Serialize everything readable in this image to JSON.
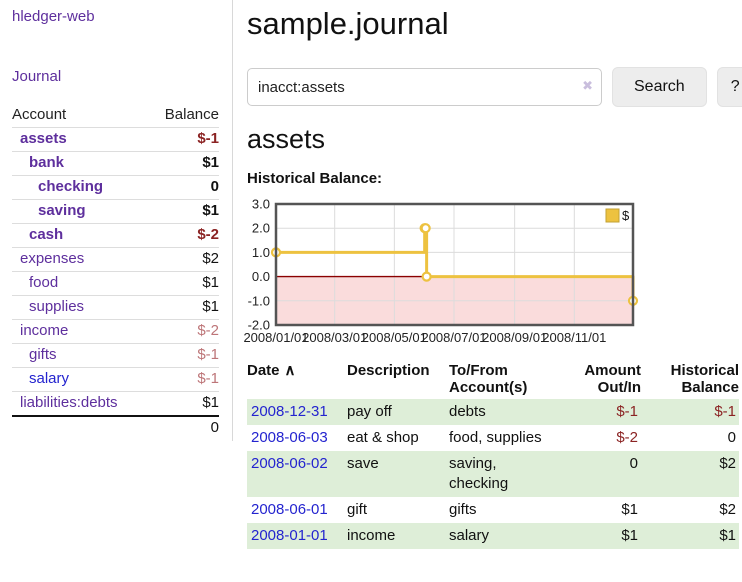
{
  "sidebar": {
    "brand": "hledger-web",
    "nav_journal": "Journal",
    "headers": {
      "account": "Account",
      "balance": "Balance"
    },
    "accounts": [
      {
        "name": "assets",
        "balance": "$-1",
        "depth": 0,
        "bold": true,
        "balance_sign": "negative-strong"
      },
      {
        "name": "bank",
        "balance": "$1",
        "depth": 1,
        "bold": true,
        "balance_sign": "positive"
      },
      {
        "name": "checking",
        "balance": "0",
        "depth": 2,
        "bold": true,
        "balance_sign": "zero"
      },
      {
        "name": "saving",
        "balance": "$1",
        "depth": 2,
        "bold": true,
        "balance_sign": "positive"
      },
      {
        "name": "cash",
        "balance": "$-2",
        "depth": 1,
        "bold": true,
        "balance_sign": "negative-strong"
      },
      {
        "name": "expenses",
        "balance": "$2",
        "depth": 0,
        "bold": false,
        "balance_sign": "positive"
      },
      {
        "name": "food",
        "balance": "$1",
        "depth": 1,
        "bold": false,
        "balance_sign": "positive"
      },
      {
        "name": "supplies",
        "balance": "$1",
        "depth": 1,
        "bold": false,
        "balance_sign": "positive"
      },
      {
        "name": "income",
        "balance": "$-2",
        "depth": 0,
        "bold": false,
        "balance_sign": "negative-muted"
      },
      {
        "name": "gifts",
        "balance": "$-1",
        "depth": 1,
        "bold": false,
        "balance_sign": "negative-muted"
      },
      {
        "name": "salary",
        "balance": "$-1",
        "depth": 1,
        "bold": false,
        "balance_sign": "negative-muted"
      },
      {
        "name": "liabilities:debts",
        "balance": "$1",
        "depth": 0,
        "bold": false,
        "balance_sign": "positive"
      }
    ],
    "total": "0"
  },
  "main": {
    "title": "sample.journal",
    "search": {
      "value": "inacct:assets",
      "clear_icon": "✖",
      "button_label": "Search",
      "help_label": "?"
    },
    "account_heading": "assets",
    "chart_label": "Historical Balance:"
  },
  "chart_data": {
    "type": "line",
    "title": "Historical Balance:",
    "series": [
      {
        "name": "$",
        "color": "#edc240",
        "marker_fill": "#ffffff",
        "steps": true,
        "points": [
          [
            "2008-01-01",
            1
          ],
          [
            "2008-06-01",
            2
          ],
          [
            "2008-06-02",
            2
          ],
          [
            "2008-06-03",
            0
          ],
          [
            "2008-12-31",
            -1
          ]
        ]
      }
    ],
    "x_range": [
      "2008-01-01",
      "2008-12-31"
    ],
    "x_ticks": [
      {
        "label": "2008/01/01",
        "date": "2008-01-01"
      },
      {
        "label": "2008/03/01",
        "date": "2008-03-01"
      },
      {
        "label": "2008/05/01",
        "date": "2008-05-01"
      },
      {
        "label": "2008/07/01",
        "date": "2008-07-01"
      },
      {
        "label": "2008/09/01",
        "date": "2008-09-01"
      },
      {
        "label": "2008/11/01",
        "date": "2008-11-01"
      }
    ],
    "y_ticks": [
      3,
      2,
      1,
      0,
      -1,
      -2
    ],
    "ylim": [
      -2,
      3
    ],
    "grid": true,
    "grid_color": "#dcdcdc",
    "border_color": "#545454",
    "zero_line_color": "#8b0000",
    "negative_region_color": "#fadcdc",
    "legend": {
      "label": "$",
      "position": "top-right"
    }
  },
  "register": {
    "headers": {
      "date": "Date",
      "sort_icon": "∧",
      "description": "Description",
      "tofrom": "To/From\nAccount(s)",
      "amount": "Amount\nOut/In",
      "historical": "Historical\nBalance"
    },
    "rows": [
      {
        "date": "2008-12-31",
        "description": "pay off",
        "accounts": "debts",
        "amount": "$-1",
        "balance": "$-1",
        "amount_negative": true,
        "balance_negative": true,
        "highlighted": true
      },
      {
        "date": "2008-06-03",
        "description": "eat & shop",
        "accounts": "food, supplies",
        "amount": "$-2",
        "balance": "0",
        "amount_negative": true,
        "balance_negative": false,
        "highlighted": false
      },
      {
        "date": "2008-06-02",
        "description": "save",
        "accounts": "saving,\nchecking",
        "amount": "0",
        "balance": "$2",
        "amount_negative": false,
        "balance_negative": false,
        "highlighted": true
      },
      {
        "date": "2008-06-01",
        "description": "gift",
        "accounts": "gifts",
        "amount": "$1",
        "balance": "$2",
        "amount_negative": false,
        "balance_negative": false,
        "highlighted": false
      },
      {
        "date": "2008-01-01",
        "description": "income",
        "accounts": "salary",
        "amount": "$1",
        "balance": "$1",
        "amount_negative": false,
        "balance_negative": false,
        "highlighted": true
      }
    ]
  },
  "colors": {
    "link_purple": "#5e2f9d",
    "link_blue": "#2424cf",
    "negative_strong": "#8b2323",
    "negative_muted": "#bd7578",
    "row_highlight_green": "#deeed8",
    "chart_line_gold": "#edc240",
    "chart_negative_pink": "#fadcdc",
    "chart_zero_line": "#8b0000",
    "button_background": "#ededed"
  }
}
